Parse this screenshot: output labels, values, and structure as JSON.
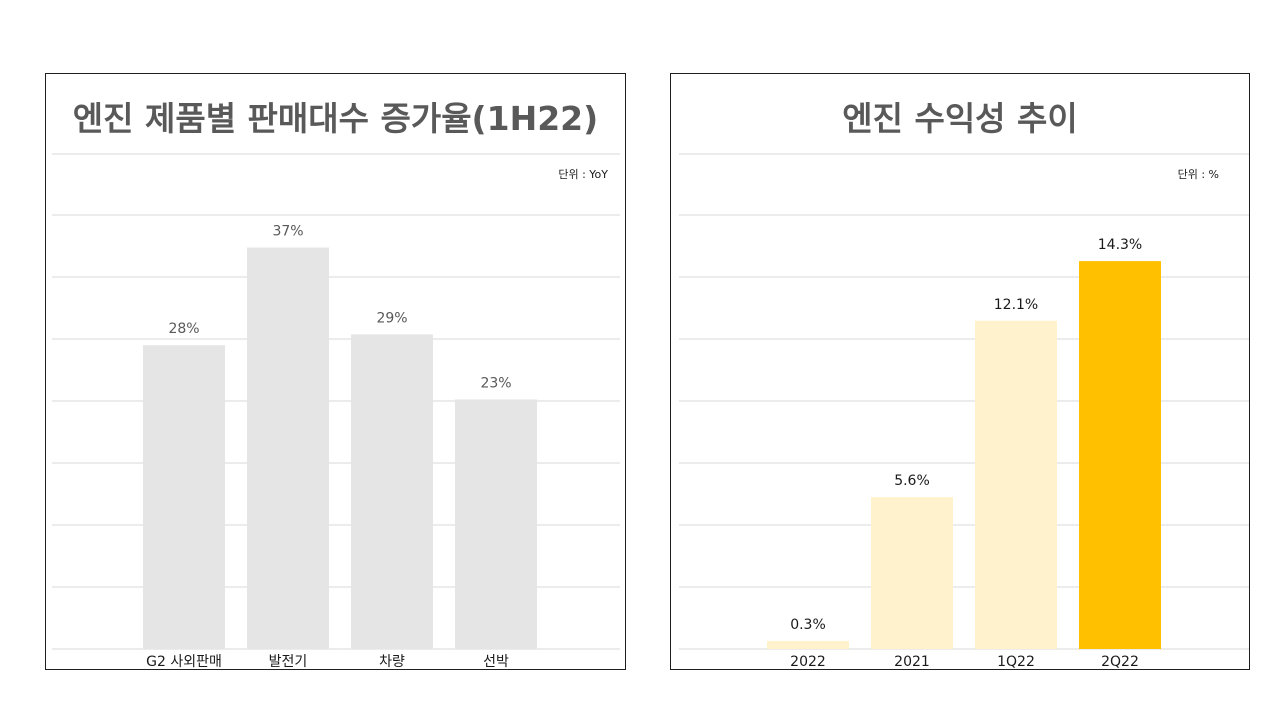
{
  "colors": {
    "grid": "#d9d9d9",
    "left_bar": "#e5e5e5",
    "left_value_text": "#595959",
    "right_bar_light": "#fff2cc",
    "right_bar_highlight": "#ffc000",
    "right_value_text": "#1a1a1a",
    "title_text": "#595959"
  },
  "chart_data": [
    {
      "type": "bar",
      "title": "엔진 제품별 판매대수 증가율(1H22)",
      "unit_label": "단위 : YoY",
      "categories": [
        "G2 사외판매",
        "발전기",
        "차량",
        "선박"
      ],
      "values": [
        28,
        37,
        29,
        23
      ],
      "value_labels": [
        "28%",
        "37%",
        "29%",
        "23%"
      ],
      "ylim": [
        0,
        40
      ],
      "grid": true,
      "xlabel": "",
      "ylabel": ""
    },
    {
      "type": "bar",
      "title": "엔진 수익성 추이",
      "unit_label": "단위 : %",
      "categories": [
        "2022",
        "2021",
        "1Q22",
        "2Q22"
      ],
      "values": [
        0.3,
        5.6,
        12.1,
        14.3
      ],
      "value_labels": [
        "0.3%",
        "5.6%",
        "12.1%",
        "14.3%"
      ],
      "highlight": "2Q22",
      "ylim": [
        0,
        16
      ],
      "grid": true,
      "xlabel": "",
      "ylabel": ""
    }
  ]
}
